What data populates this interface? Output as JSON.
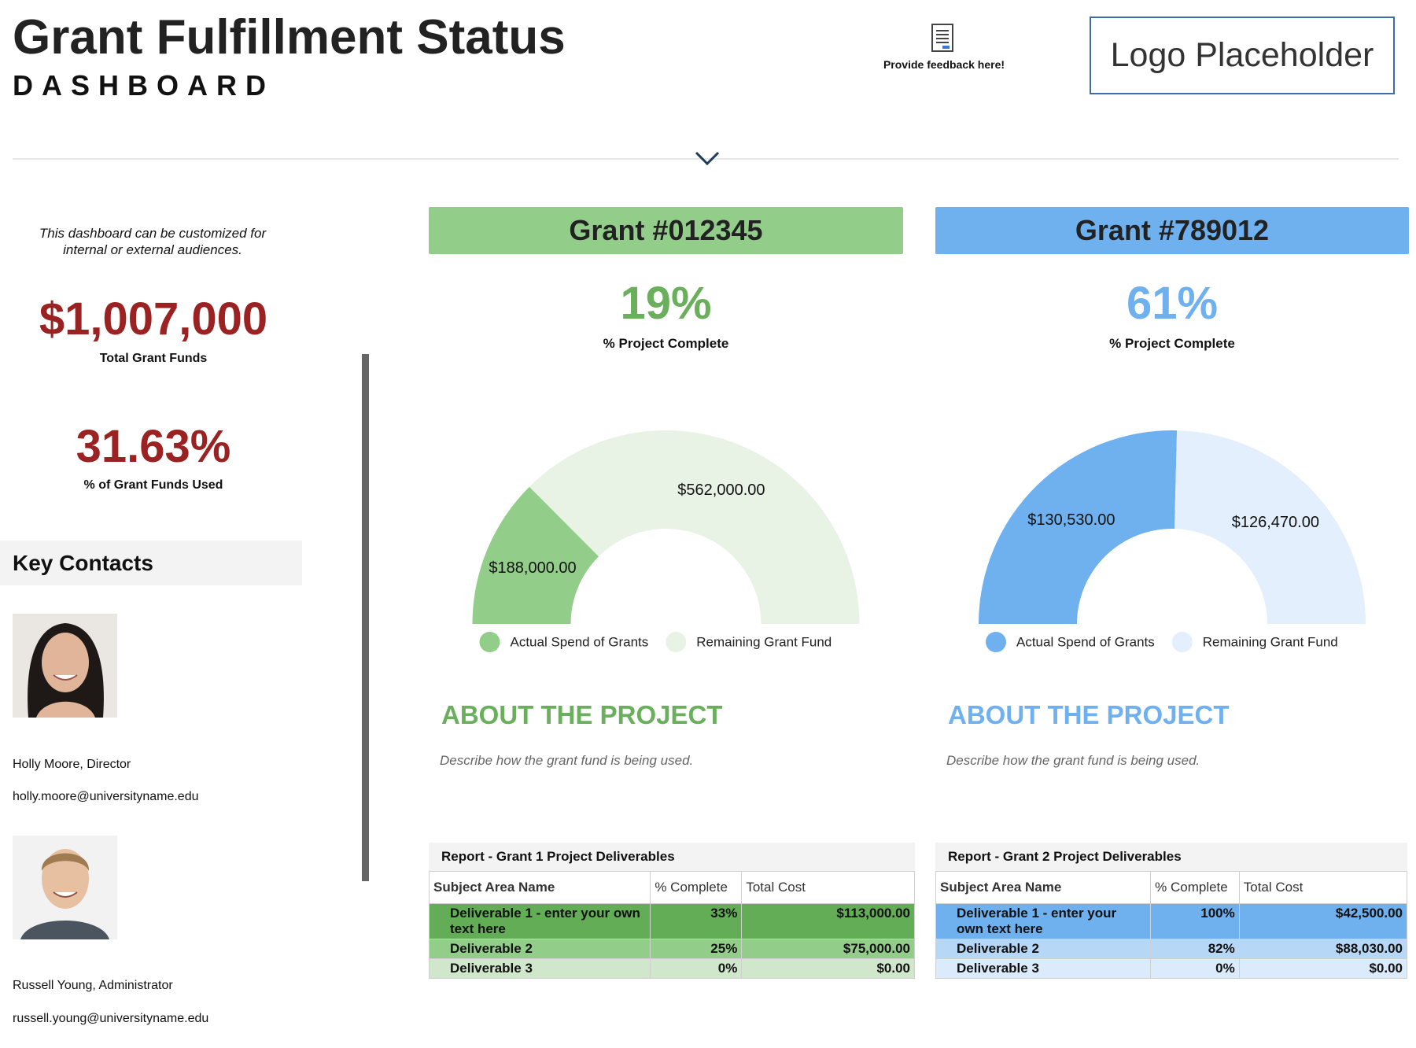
{
  "header": {
    "title": "Grant Fulfillment Status",
    "subtitle": "DASHBOARD",
    "feedback": "Provide feedback here!",
    "logo": "Logo Placeholder"
  },
  "intro": "This dashboard can be customized for internal or external audiences.",
  "kpis": [
    {
      "value": "$1,007,000",
      "label": "Total Grant Funds"
    },
    {
      "value": "31.63%",
      "label": "% of Grant Funds Used"
    }
  ],
  "contacts": {
    "title": "Key Contacts",
    "people": [
      {
        "name": "Holly Moore, Director",
        "email": "holly.moore@universityname.edu"
      },
      {
        "name": "Russell Young, Administrator",
        "email": "russell.young@universityname.edu"
      }
    ]
  },
  "grants": [
    {
      "title": "Grant #012345",
      "color": "#93cd8a",
      "accent": "#6aaf5c",
      "percent": "19%",
      "percent_label": "% Project Complete",
      "gauge": {
        "type": "gauge",
        "series": [
          {
            "name": "Actual Spend of Grants",
            "color": "#93cd8a",
            "value": 188000,
            "value_label": "$188,000.00"
          },
          {
            "name": "Remaining Grant Fund",
            "color": "#e8f3e6",
            "value": 562000,
            "value_label": "$562,000.00"
          }
        ]
      },
      "about_title": "ABOUT THE PROJECT",
      "about_text": "Describe how the grant fund is being used.",
      "report": {
        "title": "Report - Grant 1 Project Deliverables",
        "columns": [
          "Subject Area Name",
          "% Complete",
          "Total Cost"
        ],
        "rows": [
          [
            "Deliverable 1 - enter your own text here",
            "33%",
            "$113,000.00"
          ],
          [
            "Deliverable 2",
            "25%",
            "$75,000.00"
          ],
          [
            "Deliverable 3",
            "0%",
            "$0.00"
          ]
        ],
        "row_colors": [
          "#62ad56",
          "#93cd8a",
          "#d0e7cb"
        ]
      }
    },
    {
      "title": "Grant #789012",
      "color": "#6fb0ef",
      "accent": "#6fb0ef",
      "percent": "61%",
      "percent_label": "% Project Complete",
      "gauge": {
        "type": "gauge",
        "series": [
          {
            "name": "Actual Spend of Grants",
            "color": "#6fb0ef",
            "value": 130530,
            "value_label": "$130,530.00"
          },
          {
            "name": "Remaining Grant Fund",
            "color": "#e3effc",
            "value": 126470,
            "value_label": "$126,470.00"
          }
        ]
      },
      "about_title": "ABOUT THE PROJECT",
      "about_text": "Describe how the grant fund is being used.",
      "report": {
        "title": "Report - Grant 2 Project Deliverables",
        "columns": [
          "Subject Area Name",
          "% Complete",
          "Total Cost"
        ],
        "rows": [
          [
            "Deliverable 1 - enter your own text here",
            "100%",
            "$42,500.00"
          ],
          [
            "Deliverable 2",
            "82%",
            "$88,030.00"
          ],
          [
            "Deliverable 3",
            "0%",
            "$0.00"
          ]
        ],
        "row_colors": [
          "#6fb0ef",
          "#b7d7f7",
          "#dcebfb"
        ]
      }
    }
  ]
}
